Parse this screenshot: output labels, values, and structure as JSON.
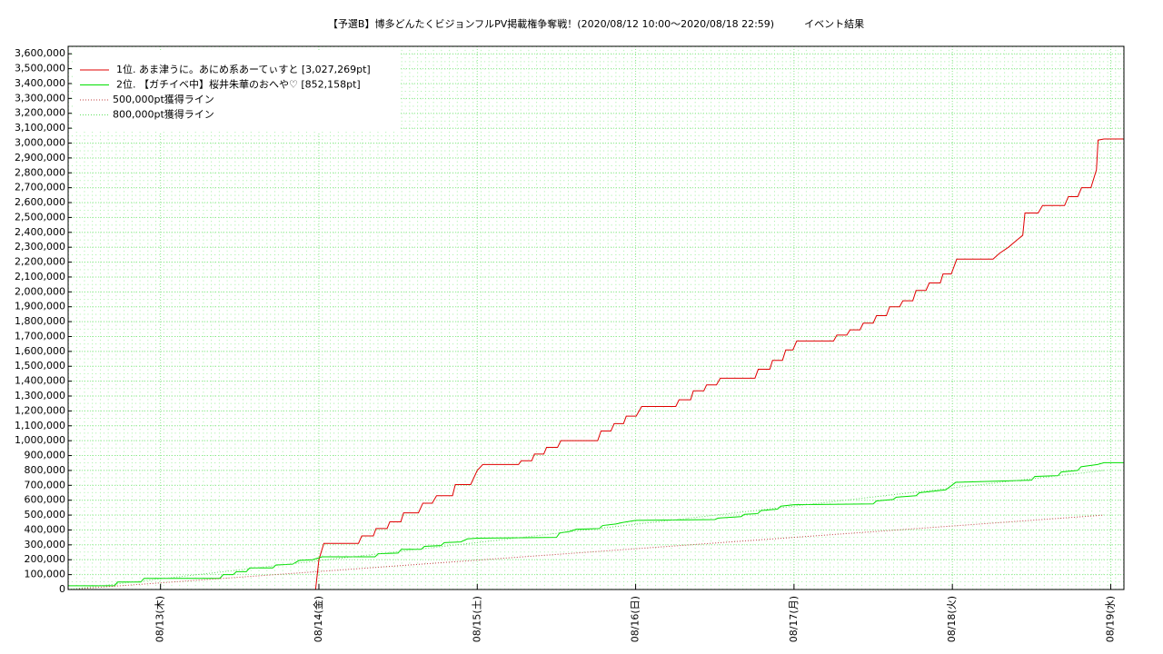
{
  "chart_data": {
    "type": "line",
    "title": "【予選B】博多どんたくビジョンフルPV掲載権争奪戦！(2020/08/12 10:00〜2020/08/18 22:59)　　　イベント結果",
    "xlim": [
      "08/12 10:00",
      "08/19 02:00"
    ],
    "xticks": [
      {
        "value": "08/13 00:00",
        "label": "08/13(木)"
      },
      {
        "value": "08/14 00:00",
        "label": "08/14(金)"
      },
      {
        "value": "08/15 00:00",
        "label": "08/15(土)"
      },
      {
        "value": "08/16 00:00",
        "label": "08/16(日)"
      },
      {
        "value": "08/17 00:00",
        "label": "08/17(月)"
      },
      {
        "value": "08/18 00:00",
        "label": "08/18(火)"
      },
      {
        "value": "08/19 00:00",
        "label": "08/19(水)"
      }
    ],
    "ylim": [
      0,
      3650000
    ],
    "yticks": [
      0,
      {
        "value": 100000,
        "label": "100,000"
      },
      {
        "value": 200000,
        "label": "200,000"
      },
      {
        "value": 300000,
        "label": "300,000"
      },
      {
        "value": 400000,
        "label": "400,000"
      },
      {
        "value": 500000,
        "label": "500,000"
      },
      {
        "value": 600000,
        "label": "600,000"
      },
      {
        "value": 700000,
        "label": "700,000"
      },
      {
        "value": 800000,
        "label": "800,000"
      },
      {
        "value": 900000,
        "label": "900,000"
      },
      {
        "value": 1000000,
        "label": "1,000,000"
      },
      {
        "value": 1100000,
        "label": "1,100,000"
      },
      {
        "value": 1200000,
        "label": "1,200,000"
      },
      {
        "value": 1300000,
        "label": "1,300,000"
      },
      {
        "value": 1400000,
        "label": "1,400,000"
      },
      {
        "value": 1500000,
        "label": "1,500,000"
      },
      {
        "value": 1600000,
        "label": "1,600,000"
      },
      {
        "value": 1700000,
        "label": "1,700,000"
      },
      {
        "value": 1800000,
        "label": "1,800,000"
      },
      {
        "value": 1900000,
        "label": "1,900,000"
      },
      {
        "value": 2000000,
        "label": "2,000,000"
      },
      {
        "value": 2100000,
        "label": "2,100,000"
      },
      {
        "value": 2200000,
        "label": "2,200,000"
      },
      {
        "value": 2300000,
        "label": "2,300,000"
      },
      {
        "value": 2400000,
        "label": "2,400,000"
      },
      {
        "value": 2500000,
        "label": "2,500,000"
      },
      {
        "value": 2600000,
        "label": "2,600,000"
      },
      {
        "value": 2700000,
        "label": "2,700,000"
      },
      {
        "value": 2800000,
        "label": "2,800,000"
      },
      {
        "value": 2900000,
        "label": "2,900,000"
      },
      {
        "value": 3000000,
        "label": "3,000,000"
      },
      {
        "value": 3100000,
        "label": "3,100,000"
      },
      {
        "value": 3200000,
        "label": "3,200,000"
      },
      {
        "value": 3300000,
        "label": "3,300,000"
      },
      {
        "value": 3400000,
        "label": "3,400,000"
      },
      {
        "value": 3500000,
        "label": "3,500,000"
      },
      {
        "value": 3600000,
        "label": "3,600,000"
      }
    ],
    "grid": true,
    "legend": "upper-left",
    "series": [
      {
        "name": "1位. あま津うに。あにめ系あーてぃすと [3,027,269pt]",
        "color": "#e00000",
        "dash": "solid",
        "x": [
          "08/13 23:30",
          "08/14 00:00",
          "08/14 00:45",
          "08/14 06:00",
          "08/14 06:30",
          "08/14 08:15",
          "08/14 08:40",
          "08/14 10:20",
          "08/14 10:45",
          "08/14 12:25",
          "08/14 12:50",
          "08/14 15:05",
          "08/14 15:45",
          "08/14 17:10",
          "08/14 17:50",
          "08/14 20:15",
          "08/14 20:40",
          "08/14 23:00",
          "08/15 00:00",
          "08/15 00:50",
          "08/15 06:15",
          "08/15 06:40",
          "08/15 08:15",
          "08/15 08:40",
          "08/15 10:05",
          "08/15 10:30",
          "08/15 12:10",
          "08/15 12:40",
          "08/15 18:15",
          "08/15 18:45",
          "08/15 20:15",
          "08/15 20:45",
          "08/15 22:10",
          "08/15 22:35",
          "08/16 00:05",
          "08/16 00:55",
          "08/16 06:05",
          "08/16 06:35",
          "08/16 08:20",
          "08/16 08:45",
          "08/16 10:20",
          "08/16 10:45",
          "08/16 12:15",
          "08/16 12:50",
          "08/16 18:05",
          "08/16 18:35",
          "08/16 20:20",
          "08/16 20:45",
          "08/16 22:15",
          "08/16 22:45",
          "08/16 23:50",
          "08/17 00:25",
          "08/17 06:00",
          "08/17 06:30",
          "08/17 08:00",
          "08/17 08:30",
          "08/17 10:00",
          "08/17 10:30",
          "08/17 12:00",
          "08/17 12:30",
          "08/17 14:00",
          "08/17 14:30",
          "08/17 16:00",
          "08/17 16:30",
          "08/17 18:00",
          "08/17 18:30",
          "08/17 20:00",
          "08/17 20:30",
          "08/17 22:10",
          "08/17 22:35",
          "08/17 23:50",
          "08/18 00:40",
          "08/18 06:10",
          "08/18 07:10",
          "08/18 08:30",
          "08/18 09:50",
          "08/18 10:40",
          "08/18 11:00",
          "08/18 13:00",
          "08/18 13:40",
          "08/18 17:00",
          "08/18 17:35",
          "08/18 19:00",
          "08/18 19:35",
          "08/18 21:00",
          "08/18 21:50",
          "08/18 22:05",
          "08/18 22:59",
          "08/19 02:00"
        ],
        "values": [
          0,
          200000,
          310000,
          310000,
          360000,
          360000,
          410000,
          410000,
          455000,
          455000,
          515000,
          515000,
          580000,
          580000,
          630000,
          630000,
          705000,
          705000,
          800000,
          840000,
          840000,
          865000,
          865000,
          910000,
          910000,
          955000,
          955000,
          1000000,
          1000000,
          1065000,
          1065000,
          1115000,
          1115000,
          1165000,
          1165000,
          1230000,
          1230000,
          1275000,
          1275000,
          1335000,
          1335000,
          1375000,
          1375000,
          1420000,
          1420000,
          1480000,
          1480000,
          1540000,
          1540000,
          1610000,
          1610000,
          1670000,
          1670000,
          1710000,
          1710000,
          1745000,
          1745000,
          1790000,
          1790000,
          1840000,
          1840000,
          1900000,
          1900000,
          1940000,
          1940000,
          2010000,
          2010000,
          2060000,
          2060000,
          2120000,
          2120000,
          2220000,
          2220000,
          2260000,
          2300000,
          2350000,
          2380000,
          2530000,
          2530000,
          2580000,
          2580000,
          2640000,
          2640000,
          2700000,
          2700000,
          2820000,
          3020000,
          3027269,
          3027269
        ]
      },
      {
        "name": "2位. 【ガチイベ中】桜井朱華のおへや♡ [852,158pt]",
        "color": "#00e000",
        "dash": "solid",
        "x": [
          "08/12 10:00",
          "08/12 17:00",
          "08/12 17:30",
          "08/12 21:00",
          "08/12 21:30",
          "08/13 09:00",
          "08/13 09:30",
          "08/13 11:00",
          "08/13 11:30",
          "08/13 13:00",
          "08/13 13:30",
          "08/13 17:00",
          "08/13 17:30",
          "08/13 20:00",
          "08/13 21:00",
          "08/13 23:00",
          "08/14 00:30",
          "08/14 08:30",
          "08/14 09:00",
          "08/14 12:00",
          "08/14 12:30",
          "08/14 15:30",
          "08/14 16:00",
          "08/14 18:30",
          "08/14 19:00",
          "08/14 21:30",
          "08/14 22:30",
          "08/15 00:00",
          "08/15 12:00",
          "08/15 12:30",
          "08/15 14:00",
          "08/15 15:00",
          "08/15 18:30",
          "08/15 19:00",
          "08/15 21:00",
          "08/15 22:00",
          "08/16 00:00",
          "08/16 12:00",
          "08/16 12:30",
          "08/16 16:00",
          "08/16 16:30",
          "08/16 18:30",
          "08/16 19:00",
          "08/16 21:30",
          "08/16 22:00",
          "08/17 00:00",
          "08/17 12:00",
          "08/17 12:30",
          "08/17 15:00",
          "08/17 15:30",
          "08/17 18:30",
          "08/17 19:00",
          "08/17 23:00",
          "08/18 00:30",
          "08/18 12:00",
          "08/18 12:30",
          "08/18 16:00",
          "08/18 16:30",
          "08/18 19:00",
          "08/18 19:30",
          "08/18 22:00",
          "08/18 22:59",
          "08/19 02:00"
        ],
        "values": [
          25000,
          25000,
          50000,
          50000,
          75000,
          75000,
          100000,
          100000,
          120000,
          120000,
          145000,
          145000,
          165000,
          170000,
          195000,
          200000,
          220000,
          220000,
          240000,
          245000,
          270000,
          270000,
          290000,
          295000,
          315000,
          320000,
          340000,
          345000,
          350000,
          380000,
          390000,
          405000,
          410000,
          430000,
          440000,
          450000,
          465000,
          470000,
          480000,
          490000,
          505000,
          510000,
          530000,
          540000,
          560000,
          570000,
          575000,
          595000,
          605000,
          620000,
          630000,
          650000,
          670000,
          720000,
          735000,
          760000,
          765000,
          790000,
          800000,
          825000,
          840000,
          852158,
          852158
        ]
      },
      {
        "name": "500,000pt獲得ライン",
        "color": "#c04040",
        "dash": "dotted",
        "x": [
          "08/12 10:00",
          "08/18 22:59"
        ],
        "values": [
          0,
          500000
        ]
      },
      {
        "name": "800,000pt獲得ライン",
        "color": "#60e060",
        "dash": "dotted",
        "x": [
          "08/12 10:00",
          "08/18 22:59"
        ],
        "values": [
          0,
          800000
        ]
      }
    ]
  }
}
